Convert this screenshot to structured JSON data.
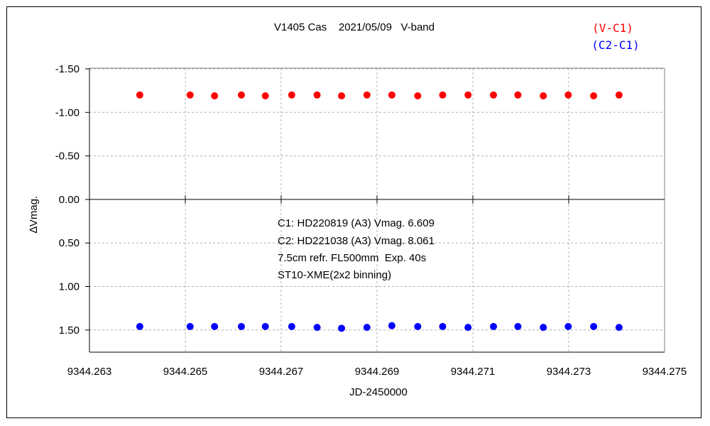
{
  "chart_data": {
    "type": "scatter",
    "title": "V1405 Cas    2021/05/09   V-band",
    "xlabel": "JD-2450000",
    "ylabel": "∆Vmag.",
    "xlim": [
      9344.263,
      9344.275
    ],
    "ylim": [
      -1.5,
      1.75
    ],
    "y_inverted": true,
    "x_ticks": [
      "9344.263",
      "9344.265",
      "9344.267",
      "9344.269",
      "9344.271",
      "9344.273",
      "9344.275"
    ],
    "x_tick_values": [
      9344.263,
      9344.265,
      9344.267,
      9344.269,
      9344.271,
      9344.273,
      9344.275
    ],
    "y_ticks": [
      "-1.50",
      "-1.00",
      "-0.50",
      "0.00",
      "0.50",
      "1.00",
      "1.50"
    ],
    "y_tick_values": [
      -1.5,
      -1.0,
      -0.5,
      0.0,
      0.5,
      1.0,
      1.5
    ],
    "grid": true,
    "legend_position": "top-right",
    "series": [
      {
        "name": "(V-C1)",
        "color": "#ff0000",
        "x": [
          9344.26405,
          9344.2651,
          9344.26561,
          9344.26617,
          9344.26667,
          9344.26722,
          9344.26775,
          9344.26826,
          9344.26879,
          9344.26931,
          9344.26985,
          9344.27037,
          9344.2709,
          9344.27143,
          9344.27194,
          9344.27247,
          9344.27299,
          9344.27352,
          9344.27405
        ],
        "values": [
          -1.2,
          -1.2,
          -1.19,
          -1.2,
          -1.19,
          -1.2,
          -1.2,
          -1.19,
          -1.2,
          -1.2,
          -1.19,
          -1.2,
          -1.2,
          -1.2,
          -1.2,
          -1.19,
          -1.2,
          -1.19,
          -1.2
        ]
      },
      {
        "name": "(C2-C1)",
        "color": "#0000ff",
        "x": [
          9344.26405,
          9344.2651,
          9344.26561,
          9344.26617,
          9344.26667,
          9344.26722,
          9344.26775,
          9344.26826,
          9344.26879,
          9344.26931,
          9344.26985,
          9344.27037,
          9344.2709,
          9344.27143,
          9344.27194,
          9344.27247,
          9344.27299,
          9344.27352,
          9344.27405
        ],
        "values": [
          1.46,
          1.46,
          1.46,
          1.46,
          1.46,
          1.46,
          1.47,
          1.48,
          1.47,
          1.45,
          1.46,
          1.46,
          1.47,
          1.46,
          1.46,
          1.47,
          1.46,
          1.46,
          1.47
        ]
      }
    ],
    "annotations": [
      "C1: HD220819 (A3) Vmag. 6.609",
      "C2: HD221038 (A3) Vmag. 8.061",
      "7.5cm refr. FL500mm  Exp. 40s",
      "ST10-XME(2x2 binning)"
    ]
  }
}
